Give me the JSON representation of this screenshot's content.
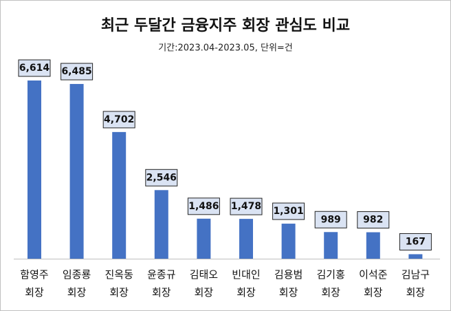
{
  "chart_data": {
    "type": "bar",
    "title": "최근 두달간 금융지주 회장 관심도 비교",
    "subtitle": "기간:2023.04-2023.05, 단위=건",
    "categories": [
      "함영주 회장",
      "임종룡 회장",
      "진옥동 회장",
      "윤종규 회장",
      "김태오 회장",
      "빈대인 회장",
      "김용범 회장",
      "김기홍 회장",
      "이석준 회장",
      "김남구 회장"
    ],
    "values": [
      6614,
      6485,
      4702,
      2546,
      1486,
      1478,
      1301,
      989,
      982,
      167
    ],
    "value_labels": [
      "6,614",
      "6,485",
      "4,702",
      "2,546",
      "1,486",
      "1,478",
      "1,301",
      "989",
      "982",
      "167"
    ],
    "color": "#4472c4"
  }
}
